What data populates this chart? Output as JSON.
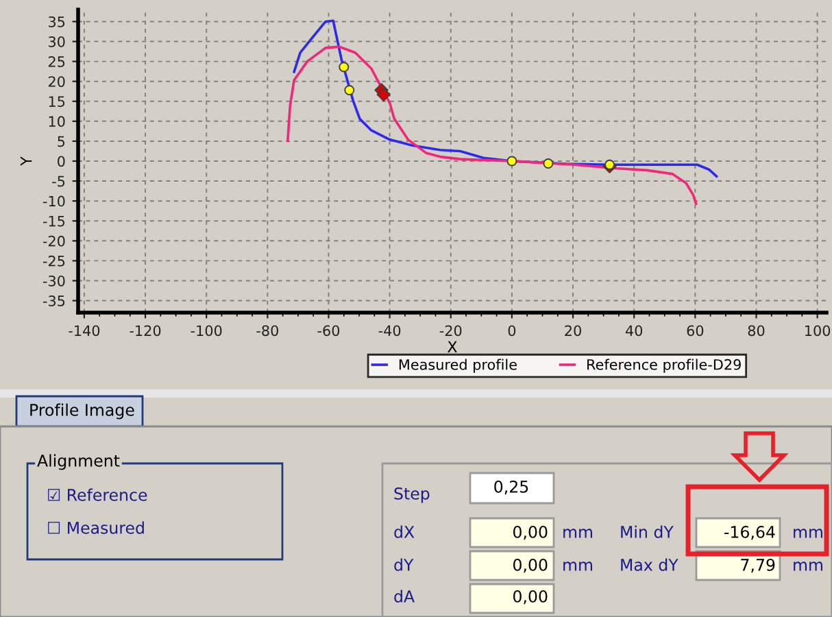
{
  "chart_data": {
    "type": "line",
    "xlabel": "X",
    "ylabel": "Y",
    "xlim": [
      -142,
      103
    ],
    "ylim": [
      -38,
      38
    ],
    "xticks": [
      -140,
      -120,
      -100,
      -80,
      -60,
      -40,
      -20,
      0,
      20,
      40,
      60,
      80,
      100
    ],
    "yticks": [
      -35,
      -30,
      -25,
      -20,
      -15,
      -10,
      -5,
      0,
      5,
      10,
      15,
      20,
      25,
      30,
      35
    ],
    "grid": true,
    "legend": "bottom",
    "marker": "none",
    "line_style": "solid",
    "series": [
      {
        "name": "Measured profile",
        "color": "#2b2bf0",
        "x": [
          -71.3,
          -69.3,
          -65.6,
          -61,
          -58.5,
          -55.8,
          -52,
          -49.8,
          -46,
          -40,
          -32.5,
          -23.5,
          -16.9,
          -9.4,
          0,
          17.5,
          32.4,
          60.7,
          64.5,
          67
        ],
        "values": [
          22.4,
          27.2,
          30.7,
          35,
          35.2,
          25.5,
          15.2,
          10.6,
          7.7,
          5.4,
          3.9,
          2.8,
          2.5,
          0.8,
          0,
          -0.7,
          -0.9,
          -0.9,
          -2.1,
          -3.8
        ]
      },
      {
        "name": "Reference profile-D29",
        "color": "#f0287a",
        "x": [
          -73.4,
          -72.6,
          -71.3,
          -67,
          -61,
          -56.5,
          -51.3,
          -46,
          -40,
          -38.5,
          -34,
          -28,
          -23.5,
          -16.9,
          0,
          20.4,
          33.9,
          44.3,
          52.5,
          57,
          59.3,
          60.3
        ],
        "values": [
          5.1,
          14,
          20.3,
          25,
          28.4,
          28.7,
          27.2,
          23.2,
          14.6,
          10.6,
          5.4,
          2,
          1.1,
          0.5,
          0,
          -0.9,
          -1.8,
          -2.3,
          -3.2,
          -5.5,
          -8.4,
          -10.7
        ]
      },
      {
        "type": "scatter",
        "color": "#e00000",
        "marker": "diamond",
        "x": [
          -42.7,
          -42,
          32
        ],
        "values": [
          17.8,
          16.7,
          -1.3
        ]
      },
      {
        "type": "scatter",
        "color": "#ffff00",
        "marker": "circle",
        "x": [
          -55,
          -53.2,
          0,
          11.9,
          32
        ],
        "values": [
          23.6,
          17.8,
          0,
          -0.6,
          -0.9
        ]
      }
    ],
    "annotations": [
      "Profile Image",
      "Alignment",
      "☑ Reference",
      "☐ Measured",
      "Step",
      "0,25",
      "dX",
      "0,00",
      "mm",
      "dY",
      "0,00",
      "mm",
      "dA",
      "0,00",
      "Min dY",
      "-16,64",
      "mm",
      "Max dY",
      "7,79",
      "mm"
    ]
  }
}
